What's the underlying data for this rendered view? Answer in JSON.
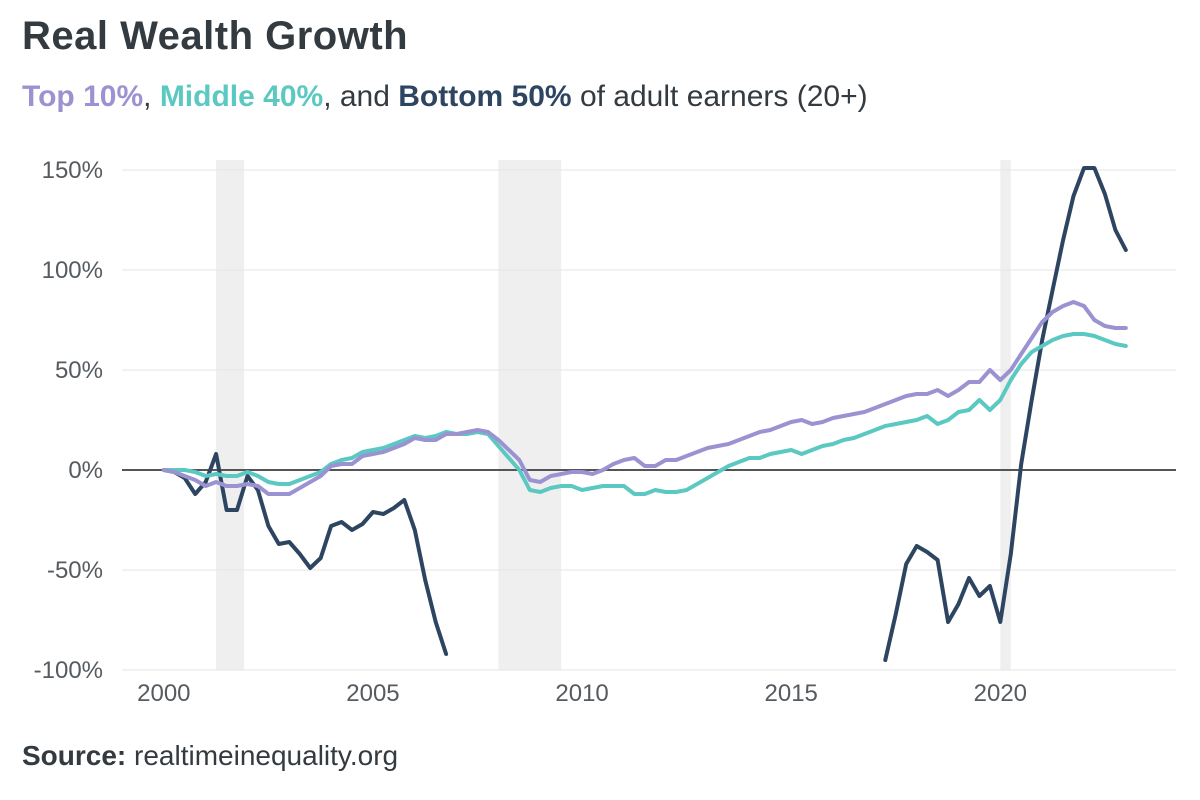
{
  "title": "Real Wealth Growth",
  "subtitle": {
    "part1": "Top 10%",
    "sep1": ", ",
    "part2": "Middle 40%",
    "sep2": ", and ",
    "part3": "Bottom 50%",
    "rest": " of adult earners (20+)"
  },
  "source": {
    "label": "Source:",
    "text": " realtimeinequality.org"
  },
  "chart_data": {
    "type": "line",
    "title": "Real Wealth Growth",
    "xlabel": "",
    "ylabel": "",
    "xlim": [
      1999.0,
      2024.2
    ],
    "ylim": [
      -100,
      160
    ],
    "x_ticks": [
      2000,
      2005,
      2010,
      2015,
      2020
    ],
    "x_tick_labels": [
      "2000",
      "2005",
      "2010",
      "2015",
      "2020"
    ],
    "y_ticks": [
      -100,
      -50,
      0,
      50,
      100,
      150
    ],
    "y_tick_labels": [
      "-100%",
      "-50%",
      "0%",
      "50%",
      "100%",
      "150%"
    ],
    "grid": "horizontal",
    "recessions": [
      [
        2001.25,
        2001.92
      ],
      [
        2008.0,
        2009.5
      ],
      [
        2020.0,
        2020.25
      ]
    ],
    "colors": {
      "top": "#9b93d1",
      "middle": "#5cc8c2",
      "bottom": "#2e4562",
      "zero_line": "#555555",
      "grid": "#e6e6e6",
      "recession": "#efefef"
    },
    "series": [
      {
        "name": "Top 10%",
        "color": "#9b93d1",
        "x": [
          2000,
          2000.25,
          2000.5,
          2000.75,
          2001,
          2001.25,
          2001.5,
          2001.75,
          2002,
          2002.25,
          2002.5,
          2002.75,
          2003,
          2003.25,
          2003.5,
          2003.75,
          2004,
          2004.25,
          2004.5,
          2004.75,
          2005,
          2005.25,
          2005.5,
          2005.75,
          2006,
          2006.25,
          2006.5,
          2006.75,
          2007,
          2007.25,
          2007.5,
          2007.75,
          2008,
          2008.25,
          2008.5,
          2008.75,
          2009,
          2009.25,
          2009.5,
          2009.75,
          2010,
          2010.25,
          2010.5,
          2010.75,
          2011,
          2011.25,
          2011.5,
          2011.75,
          2012,
          2012.25,
          2012.5,
          2012.75,
          2013,
          2013.25,
          2013.5,
          2013.75,
          2014,
          2014.25,
          2014.5,
          2014.75,
          2015,
          2015.25,
          2015.5,
          2015.75,
          2016,
          2016.25,
          2016.5,
          2016.75,
          2017,
          2017.25,
          2017.5,
          2017.75,
          2018,
          2018.25,
          2018.5,
          2018.75,
          2019,
          2019.25,
          2019.5,
          2019.75,
          2020,
          2020.25,
          2020.5,
          2020.75,
          2021,
          2021.25,
          2021.5,
          2021.75,
          2022,
          2022.25,
          2022.5,
          2022.75,
          2023
        ],
        "y": [
          0,
          -1,
          -3,
          -5,
          -8,
          -6,
          -8,
          -8,
          -7,
          -8,
          -12,
          -12,
          -12,
          -9,
          -6,
          -3,
          2,
          3,
          3,
          7,
          8,
          9,
          11,
          13,
          16,
          15,
          15,
          18,
          18,
          19,
          20,
          19,
          15,
          10,
          5,
          -5,
          -6,
          -3,
          -2,
          -1,
          -1,
          -2,
          0,
          3,
          5,
          6,
          2,
          2,
          5,
          5,
          7,
          9,
          11,
          12,
          13,
          15,
          17,
          19,
          20,
          22,
          24,
          25,
          23,
          24,
          26,
          27,
          28,
          29,
          31,
          33,
          35,
          37,
          38,
          38,
          40,
          37,
          40,
          44,
          44,
          50,
          45,
          50,
          58,
          66,
          74,
          79,
          82,
          84,
          82,
          75,
          72,
          71,
          71
        ]
      },
      {
        "name": "Middle 40%",
        "color": "#5cc8c2",
        "x": [
          2000,
          2000.25,
          2000.5,
          2000.75,
          2001,
          2001.25,
          2001.5,
          2001.75,
          2002,
          2002.25,
          2002.5,
          2002.75,
          2003,
          2003.25,
          2003.5,
          2003.75,
          2004,
          2004.25,
          2004.5,
          2004.75,
          2005,
          2005.25,
          2005.5,
          2005.75,
          2006,
          2006.25,
          2006.5,
          2006.75,
          2007,
          2007.25,
          2007.5,
          2007.75,
          2008,
          2008.25,
          2008.5,
          2008.75,
          2009,
          2009.25,
          2009.5,
          2009.75,
          2010,
          2010.25,
          2010.5,
          2010.75,
          2011,
          2011.25,
          2011.5,
          2011.75,
          2012,
          2012.25,
          2012.5,
          2012.75,
          2013,
          2013.25,
          2013.5,
          2013.75,
          2014,
          2014.25,
          2014.5,
          2014.75,
          2015,
          2015.25,
          2015.5,
          2015.75,
          2016,
          2016.25,
          2016.5,
          2016.75,
          2017,
          2017.25,
          2017.5,
          2017.75,
          2018,
          2018.25,
          2018.5,
          2018.75,
          2019,
          2019.25,
          2019.5,
          2019.75,
          2020,
          2020.25,
          2020.5,
          2020.75,
          2021,
          2021.25,
          2021.5,
          2021.75,
          2022,
          2022.25,
          2022.5,
          2022.75,
          2023
        ],
        "y": [
          0,
          0,
          0,
          -1,
          -3,
          -2,
          -3,
          -3,
          -1,
          -3,
          -6,
          -7,
          -7,
          -5,
          -3,
          -1,
          3,
          5,
          6,
          9,
          10,
          11,
          13,
          15,
          17,
          16,
          17,
          19,
          18,
          18,
          19,
          18,
          12,
          6,
          0,
          -10,
          -11,
          -9,
          -8,
          -8,
          -10,
          -9,
          -8,
          -8,
          -8,
          -12,
          -12,
          -10,
          -11,
          -11,
          -10,
          -7,
          -4,
          -1,
          2,
          4,
          6,
          6,
          8,
          9,
          10,
          8,
          10,
          12,
          13,
          15,
          16,
          18,
          20,
          22,
          23,
          24,
          25,
          27,
          23,
          25,
          29,
          30,
          35,
          30,
          35,
          45,
          53,
          59,
          62,
          65,
          67,
          68,
          68,
          67,
          65,
          63,
          62
        ]
      },
      {
        "name": "Bottom 50%",
        "color": "#2e4562",
        "x": [
          2000,
          2000.25,
          2000.5,
          2000.75,
          2001,
          2001.25,
          2001.5,
          2001.75,
          2002,
          2002.25,
          2002.5,
          2002.75,
          2003,
          2003.25,
          2003.5,
          2003.75,
          2004,
          2004.25,
          2004.5,
          2004.75,
          2005,
          2005.25,
          2005.5,
          2005.75,
          2006,
          2006.25,
          2006.5,
          2006.75,
          null,
          2017.25,
          2017.5,
          2017.75,
          2018,
          2018.25,
          2018.5,
          2018.75,
          2019,
          2019.25,
          2019.5,
          2019.75,
          2020,
          2020.25,
          2020.5,
          2020.75,
          2021,
          2021.25,
          2021.5,
          2021.75,
          2022,
          2022.25,
          2022.5,
          2022.75,
          2023
        ],
        "y": [
          0,
          -1,
          -4,
          -12,
          -6,
          8,
          -20,
          -20,
          -3,
          -10,
          -28,
          -37,
          -36,
          -42,
          -49,
          -44,
          -28,
          -26,
          -30,
          -27,
          -21,
          -22,
          -19,
          -15,
          -30,
          -55,
          -76,
          -92,
          null,
          -95,
          -72,
          -47,
          -38,
          -41,
          -45,
          -76,
          -67,
          -54,
          -63,
          -58,
          -76,
          -42,
          3,
          35,
          65,
          90,
          115,
          137,
          151,
          151,
          138,
          120,
          110
        ]
      }
    ]
  }
}
